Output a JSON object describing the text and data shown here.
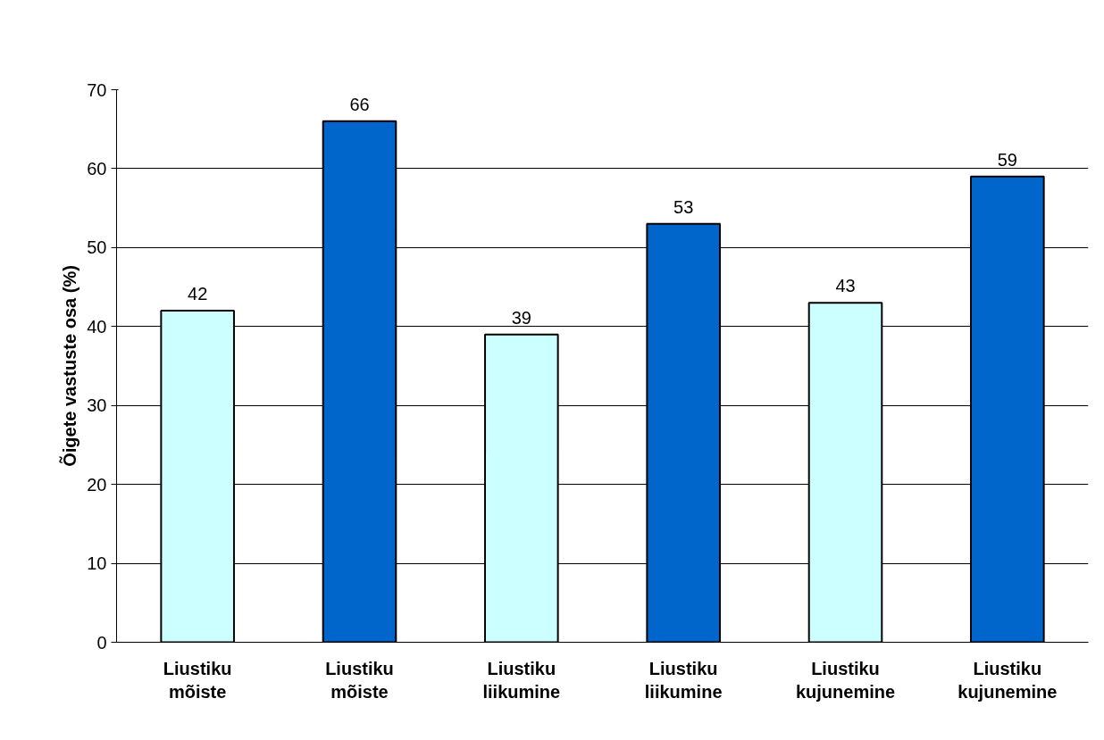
{
  "chart_data": {
    "type": "bar",
    "ylabel": "Õigete vastuste osa (%)",
    "categories": [
      "Liustiku\nmõiste",
      "Liustiku\nmõiste",
      "Liustiku\nliikumine",
      "Liustiku\nliikumine",
      "Liustiku\nkujunemine",
      "Liustiku\nkujunemine"
    ],
    "values": [
      42,
      66,
      39,
      53,
      43,
      59
    ],
    "colors": [
      "#ccffff",
      "#0066cc",
      "#ccffff",
      "#0066cc",
      "#ccffff",
      "#0066cc"
    ],
    "ylim": [
      0,
      70
    ],
    "yticks": [
      0,
      10,
      20,
      30,
      40,
      50,
      60,
      70
    ],
    "grid": "y",
    "data_labels": true
  }
}
